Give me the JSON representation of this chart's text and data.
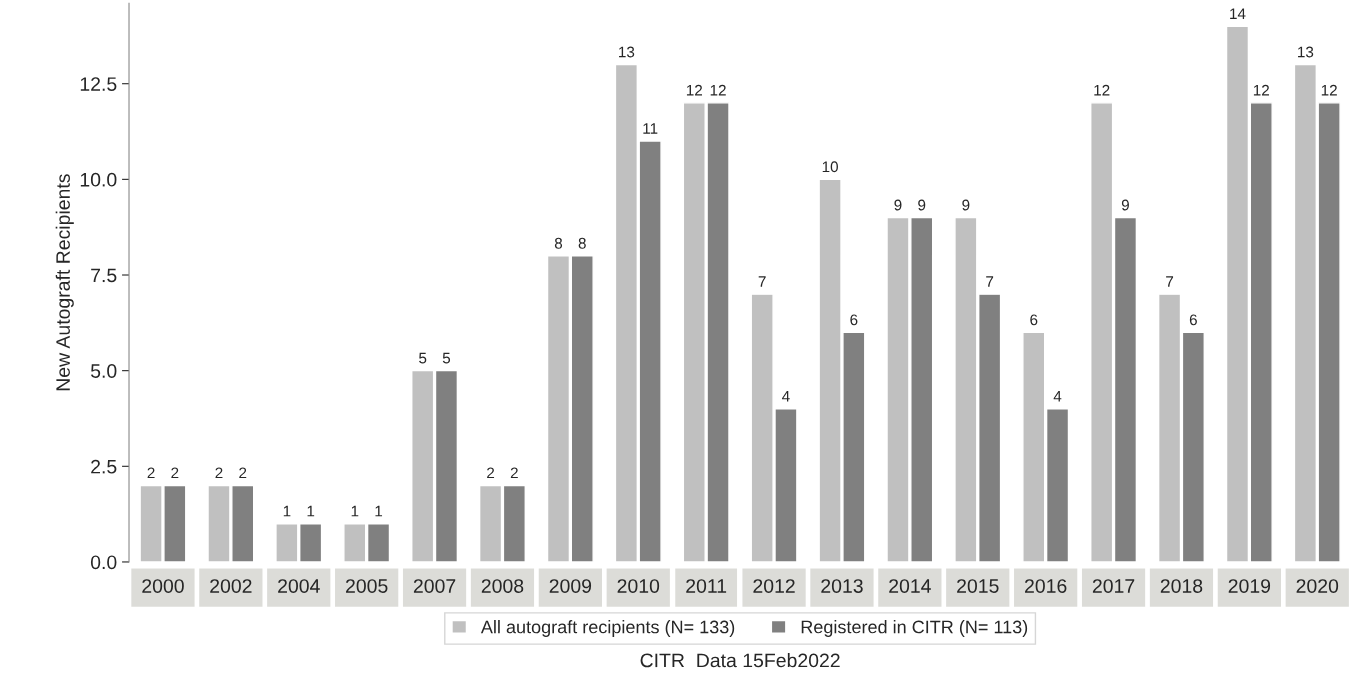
{
  "chart_data": {
    "type": "bar",
    "ylabel": "New Autograft Recipients",
    "xlabel": "CITR  Data 15Feb2022",
    "categories": [
      "2000",
      "2002",
      "2004",
      "2005",
      "2007",
      "2008",
      "2009",
      "2010",
      "2011",
      "2012",
      "2013",
      "2014",
      "2015",
      "2016",
      "2017",
      "2018",
      "2019",
      "2020"
    ],
    "series": [
      {
        "name": "All autograft recipients (N= 133)",
        "color": "#c0c0c0",
        "values": [
          2,
          2,
          1,
          1,
          5,
          2,
          8,
          13,
          12,
          7,
          10,
          9,
          9,
          6,
          12,
          7,
          14,
          13
        ]
      },
      {
        "name": "Registered in CITR (N= 113)",
        "color": "#808080",
        "values": [
          2,
          2,
          1,
          1,
          5,
          2,
          8,
          11,
          12,
          4,
          6,
          9,
          7,
          4,
          9,
          6,
          12,
          12
        ]
      }
    ],
    "ylim": [
      0,
      14.6
    ],
    "yticks": [
      {
        "value": 0,
        "label": "0.0"
      },
      {
        "value": 2.5,
        "label": "2.5"
      },
      {
        "value": 5,
        "label": "5.0"
      },
      {
        "value": 7.5,
        "label": "7.5"
      },
      {
        "value": 10,
        "label": "10.0"
      },
      {
        "value": 12.5,
        "label": "12.5"
      }
    ],
    "data_labels": true,
    "grid": false,
    "legend": "bottom"
  }
}
